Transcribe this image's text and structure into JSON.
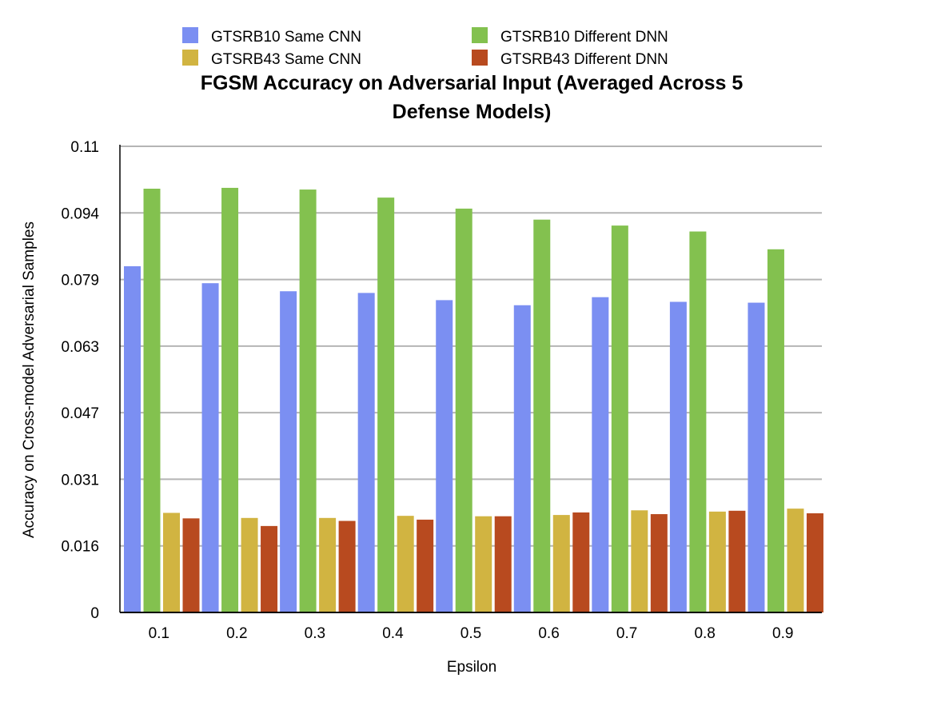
{
  "chart_data": {
    "type": "bar",
    "title_lines": [
      "FGSM Accuracy on Adversarial Input (Averaged Across 5",
      "Defense Models)"
    ],
    "xlabel": "Epsilon",
    "ylabel": "Accuracy on Cross-model Adversarial Samples",
    "categories": [
      "0.1",
      "0.2",
      "0.3",
      "0.4",
      "0.5",
      "0.6",
      "0.7",
      "0.8",
      "0.9"
    ],
    "y_ticks": [
      "0",
      "0.016",
      "0.031",
      "0.047",
      "0.063",
      "0.079",
      "0.094",
      "0.11"
    ],
    "ylim": [
      0,
      0.11
    ],
    "grid": true,
    "legend_position": "top",
    "series": [
      {
        "name": "GTSRB10 Same CNN",
        "color": "#7b8ff2",
        "values": [
          0.0817,
          0.0777,
          0.0758,
          0.0754,
          0.0737,
          0.0725,
          0.0744,
          0.0733,
          0.0731
        ]
      },
      {
        "name": "GTSRB10 Different DNN",
        "color": "#83c14f",
        "values": [
          0.1,
          0.1002,
          0.0998,
          0.0979,
          0.0953,
          0.0927,
          0.0913,
          0.0899,
          0.0857
        ]
      },
      {
        "name": "GTSRB43 Same CNN",
        "color": "#d1b441",
        "values": [
          0.0235,
          0.0223,
          0.0223,
          0.0228,
          0.0227,
          0.023,
          0.0241,
          0.0238,
          0.0245
        ]
      },
      {
        "name": "GTSRB43 Different DNN",
        "color": "#b84a1f",
        "values": [
          0.0222,
          0.0204,
          0.0216,
          0.0219,
          0.0227,
          0.0236,
          0.0232,
          0.024,
          0.0234
        ]
      }
    ]
  }
}
